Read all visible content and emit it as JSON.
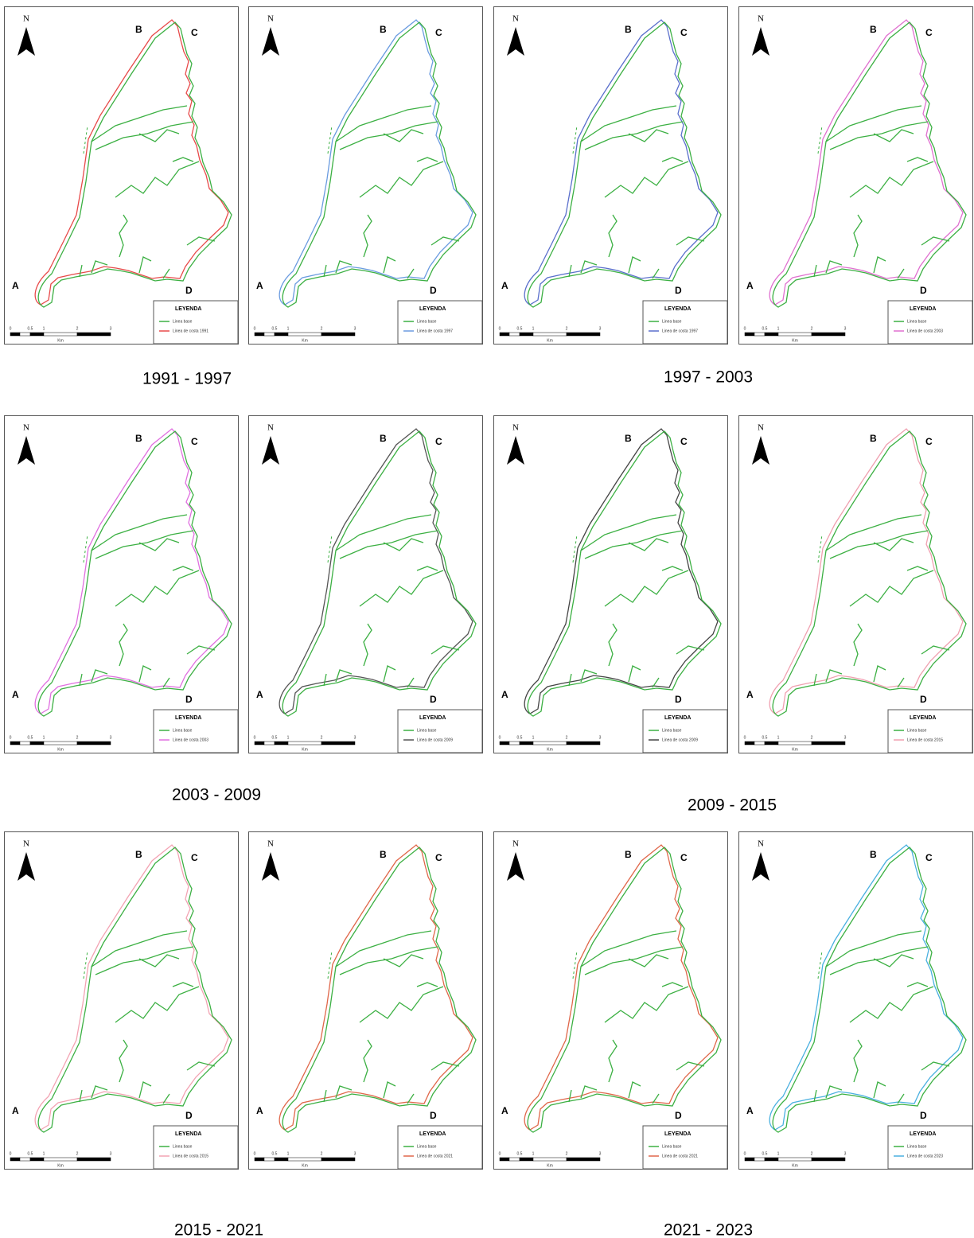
{
  "panels": [
    {
      "north": "N",
      "points": [
        "A",
        "B",
        "C",
        "D"
      ],
      "legend": {
        "title": "LEYENDA",
        "items": [
          "Linea base",
          "Linea de costa 1991"
        ]
      },
      "scale": {
        "ticks": [
          "0",
          "0.5",
          "1",
          "2",
          "3"
        ],
        "unit": "Km"
      },
      "color": "#e84a4a"
    },
    {
      "north": "N",
      "points": [
        "A",
        "B",
        "C",
        "D"
      ],
      "legend": {
        "title": "LEYENDA",
        "items": [
          "Linea base",
          "Linea de costa 1997"
        ]
      },
      "scale": {
        "ticks": [
          "0",
          "0.5",
          "1",
          "2",
          "3"
        ],
        "unit": "Km"
      },
      "color": "#6a9be0"
    },
    {
      "north": "N",
      "points": [
        "A",
        "B",
        "C",
        "D"
      ],
      "legend": {
        "title": "LEYENDA",
        "items": [
          "Linea base",
          "Linea de costa 1997"
        ]
      },
      "scale": {
        "ticks": [
          "0",
          "0.5",
          "1",
          "2",
          "3"
        ],
        "unit": "Km"
      },
      "color": "#5a6fcc"
    },
    {
      "north": "N",
      "points": [
        "A",
        "B",
        "C",
        "D"
      ],
      "legend": {
        "title": "LEYENDA",
        "items": [
          "Linea base",
          "Linea de costa 2003"
        ]
      },
      "scale": {
        "ticks": [
          "0",
          "0.5",
          "1",
          "2",
          "3"
        ],
        "unit": "Km"
      },
      "color": "#e070d0"
    },
    {
      "north": "N",
      "points": [
        "A",
        "B",
        "C",
        "D"
      ],
      "legend": {
        "title": "LEYENDA",
        "items": [
          "Linea base",
          "Linea de costa 2003"
        ]
      },
      "scale": {
        "ticks": [
          "0",
          "0.5",
          "1",
          "2",
          "3"
        ],
        "unit": "Km"
      },
      "color": "#e070e0"
    },
    {
      "north": "N",
      "points": [
        "A",
        "B",
        "C",
        "D"
      ],
      "legend": {
        "title": "LEYENDA",
        "items": [
          "Linea base",
          "Linea de costa 2009"
        ]
      },
      "scale": {
        "ticks": [
          "0",
          "0.5",
          "1",
          "2",
          "3"
        ],
        "unit": "Km"
      },
      "color": "#555555"
    },
    {
      "north": "N",
      "points": [
        "A",
        "B",
        "C",
        "D"
      ],
      "legend": {
        "title": "LEYENDA",
        "items": [
          "Linea base",
          "Linea de costa 2009"
        ]
      },
      "scale": {
        "ticks": [
          "0",
          "0.5",
          "1",
          "2",
          "3"
        ],
        "unit": "Km"
      },
      "color": "#444444"
    },
    {
      "north": "N",
      "points": [
        "A",
        "B",
        "C",
        "D"
      ],
      "legend": {
        "title": "LEYENDA",
        "items": [
          "Linea base",
          "Linea de costa 2015"
        ]
      },
      "scale": {
        "ticks": [
          "0",
          "0.5",
          "1",
          "2",
          "3"
        ],
        "unit": "Km"
      },
      "color": "#f0a0b0"
    },
    {
      "north": "N",
      "points": [
        "A",
        "B",
        "C",
        "D"
      ],
      "legend": {
        "title": "LEYENDA",
        "items": [
          "Linea base",
          "Linea de costa 2015"
        ]
      },
      "scale": {
        "ticks": [
          "0",
          "0.5",
          "1",
          "2",
          "3"
        ],
        "unit": "Km"
      },
      "color": "#f3a3b3"
    },
    {
      "north": "N",
      "points": [
        "A",
        "B",
        "C",
        "D"
      ],
      "legend": {
        "title": "LEYENDA",
        "items": [
          "Linea base",
          "Linea de costa 2021"
        ]
      },
      "scale": {
        "ticks": [
          "0",
          "0.5",
          "1",
          "2",
          "3"
        ],
        "unit": "Km"
      },
      "color": "#e0674a"
    },
    {
      "north": "N",
      "points": [
        "A",
        "B",
        "C",
        "D"
      ],
      "legend": {
        "title": "LEYENDA",
        "items": [
          "Linea base",
          "Linea de costa 2021"
        ]
      },
      "scale": {
        "ticks": [
          "0",
          "0.5",
          "1",
          "2",
          "3"
        ],
        "unit": "Km"
      },
      "color": "#e0674a"
    },
    {
      "north": "N",
      "points": [
        "A",
        "B",
        "C",
        "D"
      ],
      "legend": {
        "title": "LEYENDA",
        "items": [
          "Linea base",
          "Linea de costa 2023"
        ]
      },
      "scale": {
        "ticks": [
          "0",
          "0.5",
          "1",
          "2",
          "3"
        ],
        "unit": "Km"
      },
      "color": "#4ab0e0"
    }
  ],
  "captions": [
    "1991 - 1997",
    "1997 - 2003",
    "2003 - 2009",
    "2009 - 2015",
    "2015 - 2021",
    "2021 - 2023"
  ]
}
